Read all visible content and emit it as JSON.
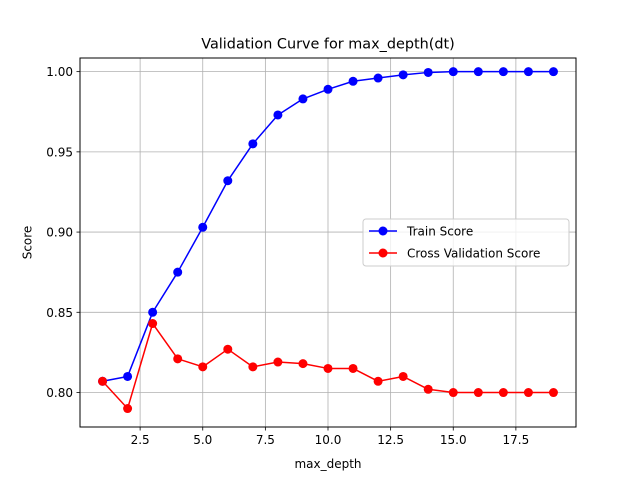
{
  "chart_data": {
    "type": "line",
    "title": "Validation Curve for max_depth(dt)",
    "xlabel": "max_depth",
    "ylabel": "Score",
    "xlim": [
      0.1,
      19.9
    ],
    "ylim": [
      0.7785,
      1.0085
    ],
    "grid": true,
    "legend_position": "center-right",
    "x": [
      1,
      2,
      3,
      4,
      5,
      6,
      7,
      8,
      9,
      10,
      11,
      12,
      13,
      14,
      15,
      16,
      17,
      18,
      19
    ],
    "xticks": [
      2.5,
      5.0,
      7.5,
      10.0,
      12.5,
      15.0,
      17.5
    ],
    "xtick_labels": [
      "2.5",
      "5.0",
      "7.5",
      "10.0",
      "12.5",
      "15.0",
      "17.5"
    ],
    "yticks": [
      0.8,
      0.85,
      0.9,
      0.95,
      1.0
    ],
    "ytick_labels": [
      "0.80",
      "0.85",
      "0.90",
      "0.95",
      "1.00"
    ],
    "series": [
      {
        "name": "Train Score",
        "color": "#0000ff",
        "marker": "circle",
        "values": [
          0.807,
          0.81,
          0.85,
          0.875,
          0.903,
          0.932,
          0.955,
          0.973,
          0.983,
          0.989,
          0.994,
          0.996,
          0.998,
          0.9995,
          1.0,
          1.0,
          1.0,
          1.0,
          1.0
        ]
      },
      {
        "name": "Cross Validation Score",
        "color": "#ff0000",
        "marker": "circle",
        "values": [
          0.807,
          0.79,
          0.843,
          0.821,
          0.816,
          0.827,
          0.816,
          0.819,
          0.818,
          0.815,
          0.815,
          0.807,
          0.81,
          0.802,
          0.8,
          0.8,
          0.8,
          0.8,
          0.8
        ]
      }
    ]
  }
}
